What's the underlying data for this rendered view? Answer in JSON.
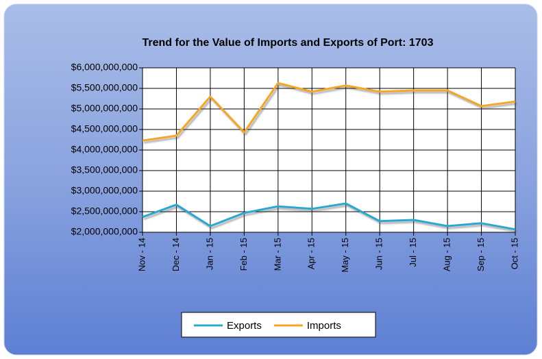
{
  "chart_data": {
    "type": "line",
    "title": "Trend for the Value of Imports and Exports of Port: 1703",
    "categories": [
      "Nov - 14",
      "Dec - 14",
      "Jan - 15",
      "Feb - 15",
      "Mar - 15",
      "Apr - 15",
      "May - 15",
      "Jun - 15",
      "Jul - 15",
      "Aug - 15",
      "Sep - 15",
      "Oct - 15"
    ],
    "series": [
      {
        "name": "Exports",
        "color": "#29a8d1",
        "values": [
          2370000000,
          2670000000,
          2150000000,
          2470000000,
          2630000000,
          2570000000,
          2700000000,
          2270000000,
          2300000000,
          2150000000,
          2220000000,
          2070000000
        ]
      },
      {
        "name": "Imports",
        "color": "#f5a623",
        "values": [
          4230000000,
          4350000000,
          5300000000,
          4430000000,
          5630000000,
          5420000000,
          5570000000,
          5420000000,
          5450000000,
          5450000000,
          5070000000,
          5180000000
        ]
      }
    ],
    "ylim": [
      2000000000,
      6000000000
    ],
    "yticks": [
      {
        "value": 2000000000,
        "label": "$2,000,000,000"
      },
      {
        "value": 2500000000,
        "label": "$2,500,000,000"
      },
      {
        "value": 3000000000,
        "label": "$3,000,000,000"
      },
      {
        "value": 3500000000,
        "label": "$3,500,000,000"
      },
      {
        "value": 4000000000,
        "label": "$4,000,000,000"
      },
      {
        "value": 4500000000,
        "label": "$4,500,000,000"
      },
      {
        "value": 5000000000,
        "label": "$5,000,000,000"
      },
      {
        "value": 5500000000,
        "label": "$5,500,000,000"
      },
      {
        "value": 6000000000,
        "label": "$6,000,000,000"
      }
    ],
    "grid": true,
    "legend": "bottom"
  }
}
